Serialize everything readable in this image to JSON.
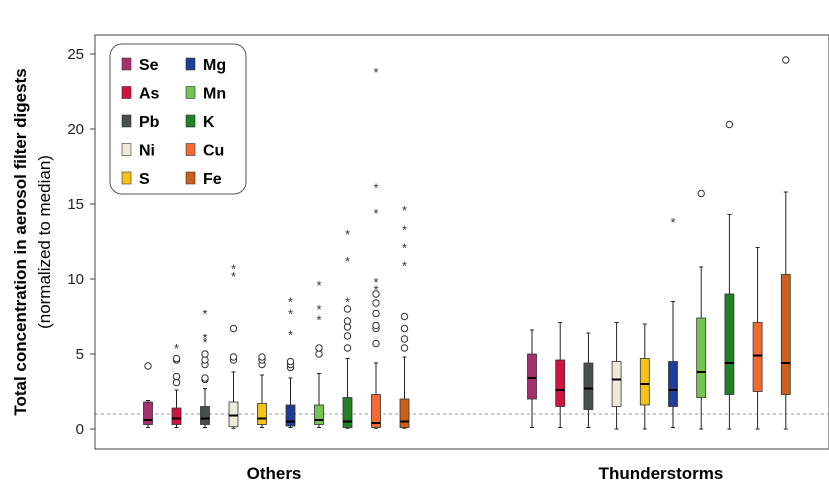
{
  "chart_data": {
    "type": "boxplot",
    "ylabel_line1": "Total concentration in aerosol filter digests",
    "ylabel_line2": "(normalized to median)",
    "ylim": [
      -1.5,
      26
    ],
    "yticks": [
      0,
      5,
      10,
      15,
      20,
      25
    ],
    "reference_line": 1,
    "groups": [
      "Others",
      "Thunderstorms"
    ],
    "legend": {
      "placement": "top-left",
      "entries": [
        {
          "name": "Se",
          "color": "#a4306e"
        },
        {
          "name": "Mg",
          "color": "#1f3c9a"
        },
        {
          "name": "As",
          "color": "#d0123f"
        },
        {
          "name": "Mn",
          "color": "#73c450"
        },
        {
          "name": "Pb",
          "color": "#4a4f4d"
        },
        {
          "name": "K",
          "color": "#238026"
        },
        {
          "name": "Ni",
          "color": "#eeead8"
        },
        {
          "name": "Cu",
          "color": "#f26b33"
        },
        {
          "name": "S",
          "color": "#f5c21b"
        },
        {
          "name": "Fe",
          "color": "#cd5f1c"
        }
      ]
    },
    "series": [
      {
        "group": "Others",
        "element": "Se",
        "color": "#a4306e",
        "min": 0.1,
        "q1": 0.3,
        "median": 0.6,
        "q3": 1.8,
        "max": 1.9,
        "outliers": [
          4.2
        ],
        "extremes": []
      },
      {
        "group": "Others",
        "element": "As",
        "color": "#d0123f",
        "min": 0.1,
        "q1": 0.3,
        "median": 0.7,
        "q3": 1.4,
        "max": 2.6,
        "outliers": [
          3.1,
          3.5,
          4.6,
          4.7
        ],
        "extremes": [
          5.4
        ]
      },
      {
        "group": "Others",
        "element": "Pb",
        "color": "#4a4f4d",
        "min": 0.1,
        "q1": 0.3,
        "median": 0.7,
        "q3": 1.5,
        "max": 2.7,
        "outliers": [
          3.3,
          3.4,
          4.3,
          4.6,
          5.0
        ],
        "extremes": [
          7.7,
          6.1,
          5.8
        ]
      },
      {
        "group": "Others",
        "element": "Ni",
        "color": "#eeead8",
        "min": 0.05,
        "q1": 0.15,
        "median": 0.9,
        "q3": 1.8,
        "max": 3.8,
        "outliers": [
          4.6,
          4.8,
          6.7
        ],
        "extremes": [
          10.7,
          10.2
        ]
      },
      {
        "group": "Others",
        "element": "S",
        "color": "#f5c21b",
        "min": 0.1,
        "q1": 0.3,
        "median": 0.7,
        "q3": 1.7,
        "max": 3.6,
        "outliers": [
          4.3,
          4.6,
          4.8
        ],
        "extremes": []
      },
      {
        "group": "Others",
        "element": "Mg",
        "color": "#1f3c9a",
        "min": 0.1,
        "q1": 0.2,
        "median": 0.5,
        "q3": 1.6,
        "max": 3.4,
        "outliers": [
          4.1,
          4.3,
          4.5
        ],
        "extremes": [
          8.5,
          7.7,
          6.3
        ]
      },
      {
        "group": "Others",
        "element": "Mn",
        "color": "#73c450",
        "min": 0.1,
        "q1": 0.3,
        "median": 0.6,
        "q3": 1.6,
        "max": 3.7,
        "outliers": [
          5.0,
          5.4
        ],
        "extremes": [
          9.6,
          8.0,
          7.3
        ]
      },
      {
        "group": "Others",
        "element": "K",
        "color": "#238026",
        "min": 0.05,
        "q1": 0.1,
        "median": 0.5,
        "q3": 2.1,
        "max": 4.7,
        "outliers": [
          5.4,
          6.2,
          6.8,
          7.2,
          8.0
        ],
        "extremes": [
          13.0,
          11.2,
          8.5
        ]
      },
      {
        "group": "Others",
        "element": "Cu",
        "color": "#f26b33",
        "min": 0.05,
        "q1": 0.1,
        "median": 0.4,
        "q3": 2.3,
        "max": 4.4,
        "outliers": [
          5.7,
          6.7,
          6.9,
          7.7,
          8.4,
          9.0
        ],
        "extremes": [
          23.8,
          16.1,
          14.4,
          9.8,
          9.3
        ]
      },
      {
        "group": "Others",
        "element": "Fe",
        "color": "#cd5f1c",
        "min": 0.05,
        "q1": 0.1,
        "median": 0.5,
        "q3": 2.0,
        "max": 4.8,
        "outliers": [
          5.4,
          6.0,
          6.7,
          7.5
        ],
        "extremes": [
          14.6,
          13.3,
          12.1,
          10.9
        ]
      },
      {
        "group": "Thunderstorms",
        "element": "Se",
        "color": "#a4306e",
        "min": 0.1,
        "q1": 2.0,
        "median": 3.4,
        "q3": 5.0,
        "max": 6.6,
        "outliers": [],
        "extremes": []
      },
      {
        "group": "Thunderstorms",
        "element": "As",
        "color": "#d0123f",
        "min": 0.1,
        "q1": 1.5,
        "median": 2.6,
        "q3": 4.6,
        "max": 7.1,
        "outliers": [],
        "extremes": []
      },
      {
        "group": "Thunderstorms",
        "element": "Pb",
        "color": "#4a4f4d",
        "min": 0.1,
        "q1": 1.3,
        "median": 2.7,
        "q3": 4.4,
        "max": 6.4,
        "outliers": [],
        "extremes": []
      },
      {
        "group": "Thunderstorms",
        "element": "Ni",
        "color": "#eeead8",
        "min": 0.0,
        "q1": 1.5,
        "median": 3.3,
        "q3": 4.5,
        "max": 7.1,
        "outliers": [],
        "extremes": []
      },
      {
        "group": "Thunderstorms",
        "element": "S",
        "color": "#f5c21b",
        "min": 0.0,
        "q1": 1.6,
        "median": 3.0,
        "q3": 4.7,
        "max": 7.0,
        "outliers": [],
        "extremes": []
      },
      {
        "group": "Thunderstorms",
        "element": "Mg",
        "color": "#1f3c9a",
        "min": 0.1,
        "q1": 1.5,
        "median": 2.6,
        "q3": 4.5,
        "max": 8.5,
        "outliers": [],
        "extremes": [
          13.8
        ]
      },
      {
        "group": "Thunderstorms",
        "element": "Mn",
        "color": "#73c450",
        "min": 0.0,
        "q1": 2.1,
        "median": 3.8,
        "q3": 7.4,
        "max": 10.8,
        "outliers": [
          15.7
        ],
        "extremes": []
      },
      {
        "group": "Thunderstorms",
        "element": "K",
        "color": "#238026",
        "min": 0.0,
        "q1": 2.3,
        "median": 4.4,
        "q3": 9.0,
        "max": 14.3,
        "outliers": [
          20.3
        ],
        "extremes": []
      },
      {
        "group": "Thunderstorms",
        "element": "Cu",
        "color": "#f26b33",
        "min": 0.0,
        "q1": 2.5,
        "median": 4.9,
        "q3": 7.1,
        "max": 12.1,
        "outliers": [],
        "extremes": []
      },
      {
        "group": "Thunderstorms",
        "element": "Fe",
        "color": "#cd5f1c",
        "min": 0.0,
        "q1": 2.3,
        "median": 4.4,
        "q3": 10.3,
        "max": 15.8,
        "outliers": [
          24.6
        ],
        "extremes": []
      }
    ]
  }
}
